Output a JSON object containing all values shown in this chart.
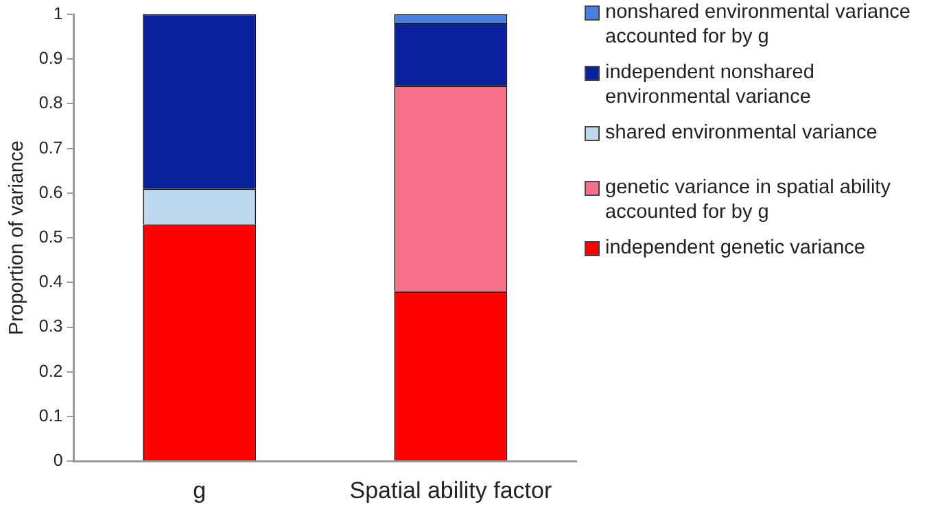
{
  "chart_data": {
    "type": "bar",
    "stacked": true,
    "ylabel": "Proportion of variance",
    "categories": [
      "g",
      "Spatial ability factor"
    ],
    "series": [
      {
        "name": "independent genetic variance",
        "color": "#ff0000",
        "values": [
          0.53,
          0.38
        ]
      },
      {
        "name": "genetic variance in spatial ability accounted for by  g",
        "color": "#f7718a",
        "values": [
          null,
          0.46
        ]
      },
      {
        "name": "shared environmental variance",
        "color": "#bdd7ee",
        "values": [
          0.08,
          null
        ]
      },
      {
        "name": "independent nonshared environmental variance",
        "color": "#0a1f9c",
        "values": [
          0.39,
          0.14
        ]
      },
      {
        "name": "nonshared environmental variance accounted for by  g",
        "color": "#4a7fe0",
        "values": [
          null,
          0.02
        ]
      }
    ],
    "ylim": [
      0,
      1
    ],
    "yticks": [
      0,
      0.1,
      0.2,
      0.3,
      0.4,
      0.5,
      0.6,
      0.7,
      0.8,
      0.9,
      1
    ],
    "grid": false,
    "legend": "right"
  }
}
